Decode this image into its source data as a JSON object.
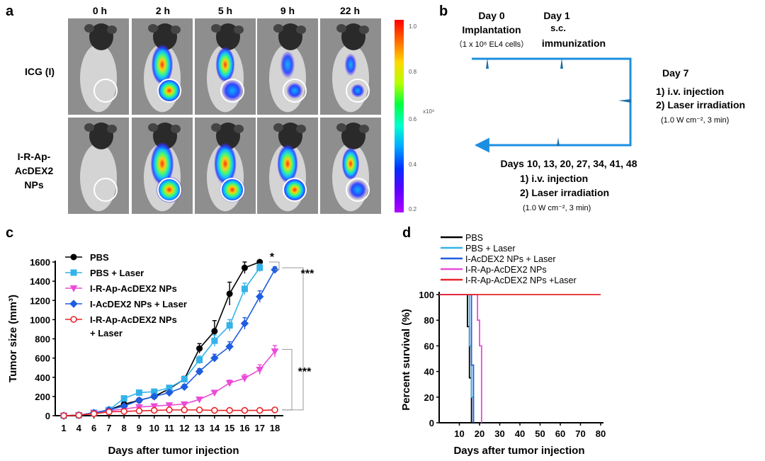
{
  "panel_a": {
    "label": "a",
    "time_points": [
      "0 h",
      "2 h",
      "5 h",
      "9 h",
      "22 h"
    ],
    "rows": [
      {
        "label_lines": [
          "ICG (I)"
        ],
        "intensities": [
          0.05,
          0.9,
          0.75,
          0.5,
          0.35
        ]
      },
      {
        "label_lines": [
          "I-R-Ap-",
          "AcDEX2",
          "NPs"
        ],
        "intensities": [
          0.05,
          1.0,
          0.95,
          0.85,
          0.65
        ]
      }
    ],
    "colorbar": {
      "ticks": [
        "1.0",
        "0.8",
        "0.6",
        "0.4",
        "0.2"
      ],
      "unit": "x10⁹",
      "colors": [
        "#ff0000",
        "#ff6a00",
        "#ffd800",
        "#b4ff00",
        "#00ff40",
        "#00ffd0",
        "#00a8ff",
        "#0030ff",
        "#5a00ff",
        "#b000ff"
      ]
    }
  },
  "panel_b": {
    "label": "b",
    "day0_title": "Day 0",
    "day0_event": "Implantation",
    "day0_detail": "（1 x 10⁶ EL4 cells）",
    "day1_title": "Day 1",
    "day1_event_lines": [
      "s.c.",
      "immunization"
    ],
    "day7_title": "Day 7",
    "day7_steps": [
      "1) i.v. injection",
      "2) Laser irradiation"
    ],
    "day7_detail": "(1.0 W cm⁻², 3 min)",
    "later_title": "Days 10, 13, 20, 27, 34, 41, 48",
    "later_steps": [
      "1) i.v. injection",
      "2) Laser irradiation"
    ],
    "later_detail": "(1.0 W cm⁻², 3 min)",
    "arrow_color": "#1d8fe0"
  },
  "panel_c": {
    "label": "c",
    "chart_data": {
      "type": "line",
      "xlabel": "Days after tumor injection",
      "ylabel": "Tumor size (mm³)",
      "categories": [
        "1",
        "4",
        "6",
        "7",
        "8",
        "9",
        "10",
        "11",
        "12",
        "13",
        "14",
        "15",
        "16",
        "17",
        "18"
      ],
      "ylim": [
        0,
        1600
      ],
      "yticks": [
        "0",
        "200",
        "400",
        "600",
        "800",
        "1000",
        "1200",
        "1400",
        "1600"
      ],
      "series": [
        {
          "name": "PBS",
          "name_lines": [
            "PBS"
          ],
          "color": "#000000",
          "marker": "circle",
          "fill": true,
          "values": [
            0,
            5,
            30,
            60,
            120,
            160,
            200,
            280,
            380,
            700,
            880,
            1270,
            1540,
            1600,
            null
          ],
          "errors": [
            0,
            0,
            10,
            10,
            15,
            15,
            20,
            25,
            30,
            50,
            110,
            120,
            60,
            20,
            null
          ]
        },
        {
          "name": "PBS + Laser",
          "name_lines": [
            "PBS + Laser"
          ],
          "color": "#34b3ea",
          "marker": "square",
          "fill": true,
          "values": [
            0,
            5,
            30,
            60,
            180,
            240,
            250,
            290,
            380,
            580,
            780,
            940,
            1320,
            1540,
            null
          ],
          "errors": [
            0,
            0,
            10,
            10,
            20,
            20,
            20,
            20,
            25,
            40,
            60,
            60,
            60,
            40,
            null
          ]
        },
        {
          "name": "I-R-Ap-AcDEX2 NPs",
          "name_lines": [
            "I-R-Ap-AcDEX2 NPs"
          ],
          "color": "#ea4bd8",
          "marker": "triangle-down",
          "fill": true,
          "values": [
            0,
            5,
            30,
            50,
            70,
            90,
            100,
            110,
            120,
            170,
            240,
            340,
            390,
            480,
            670
          ],
          "errors": [
            0,
            0,
            10,
            10,
            15,
            15,
            15,
            20,
            20,
            20,
            25,
            30,
            40,
            50,
            60
          ]
        },
        {
          "name": "I-AcDEX2 NPs + Laser",
          "name_lines": [
            "I-AcDEX2 NPs + Laser"
          ],
          "color": "#1f5de0",
          "marker": "diamond",
          "fill": true,
          "values": [
            0,
            5,
            30,
            60,
            100,
            160,
            200,
            240,
            300,
            460,
            600,
            720,
            960,
            1240,
            1520
          ],
          "errors": [
            0,
            0,
            10,
            10,
            15,
            15,
            20,
            20,
            25,
            30,
            40,
            50,
            60,
            60,
            30
          ]
        },
        {
          "name": "I-R-Ap-AcDEX2 NPs + Laser",
          "name_lines": [
            "I-R-Ap-AcDEX2 NPs",
            "+ Laser"
          ],
          "color": "#e8242a",
          "marker": "circle",
          "fill": false,
          "values": [
            0,
            5,
            20,
            40,
            45,
            50,
            55,
            60,
            60,
            60,
            55,
            55,
            55,
            55,
            60
          ],
          "errors": [
            0,
            0,
            5,
            5,
            10,
            10,
            10,
            10,
            10,
            10,
            10,
            10,
            10,
            10,
            10
          ]
        }
      ],
      "annotations": [
        {
          "text": "*",
          "between": [
            "PBS",
            "I-AcDEX2 NPs + Laser"
          ],
          "at": "18"
        },
        {
          "text": "***",
          "between": [
            "PBS",
            "I-R-Ap-AcDEX2 NPs + Laser"
          ],
          "at": "18"
        },
        {
          "text": "***",
          "between": [
            "I-R-Ap-AcDEX2 NPs",
            "I-R-Ap-AcDEX2 NPs + Laser"
          ],
          "at": "18"
        }
      ]
    }
  },
  "panel_d": {
    "label": "d",
    "chart_data": {
      "type": "line",
      "xlabel": "Days after tumor injection",
      "ylabel": "Percent survival (%)",
      "xlim": [
        0,
        80
      ],
      "ylim": [
        0,
        100
      ],
      "xticks": [
        "10",
        "20",
        "30",
        "40",
        "50",
        "60",
        "70",
        "80"
      ],
      "yticks": [
        "0",
        "20",
        "40",
        "60",
        "80",
        "100"
      ],
      "series": [
        {
          "name": "PBS",
          "color": "#000000",
          "steps": [
            [
              0,
              100
            ],
            [
              14,
              100
            ],
            [
              14,
              75
            ],
            [
              15,
              75
            ],
            [
              15,
              35
            ],
            [
              16,
              35
            ],
            [
              16,
              0
            ]
          ]
        },
        {
          "name": "PBS + Laser",
          "color": "#34b3ea",
          "steps": [
            [
              0,
              100
            ],
            [
              15,
              100
            ],
            [
              15,
              60
            ],
            [
              16,
              60
            ],
            [
              16,
              20
            ],
            [
              17,
              20
            ],
            [
              17,
              0
            ]
          ]
        },
        {
          "name": "I-AcDEX2 NPs + Laser",
          "color": "#1f5de0",
          "steps": [
            [
              0,
              100
            ],
            [
              16,
              100
            ],
            [
              16,
              45
            ],
            [
              17,
              45
            ],
            [
              17,
              0
            ]
          ]
        },
        {
          "name": "I-R-Ap-AcDEX2 NPs",
          "color": "#ea4bd8",
          "steps": [
            [
              0,
              100
            ],
            [
              19,
              100
            ],
            [
              19,
              80
            ],
            [
              20,
              80
            ],
            [
              20,
              60
            ],
            [
              21,
              60
            ],
            [
              21,
              0
            ]
          ]
        },
        {
          "name": "I-R-Ap-AcDEX2 NPs +Laser",
          "color": "#e8242a",
          "steps": [
            [
              0,
              100
            ],
            [
              80,
              100
            ]
          ]
        }
      ]
    }
  }
}
